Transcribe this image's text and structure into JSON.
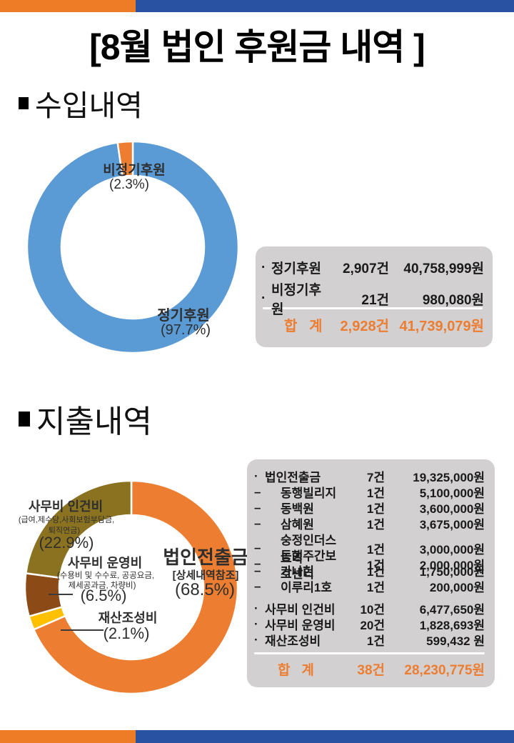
{
  "page": {
    "title": "[8월 법인 후원금 내역 ]"
  },
  "sections": {
    "income": {
      "heading": "수입내역"
    },
    "expense": {
      "heading": "지출내역"
    }
  },
  "colors": {
    "bar_orange": "#EE7B26",
    "bar_blue": "#2952A3",
    "donut_blue": "#5B9BD5",
    "donut_orange": "#ED7D31",
    "donut_gold": "#FFC000",
    "donut_brown": "#8C4A16",
    "donut_olive": "#8A7220",
    "table_bg": "#d2d0d0",
    "total_text": "#ED7D31"
  },
  "chart_data": [
    {
      "type": "pie",
      "subtype": "donut",
      "title": "수입내역",
      "labels": [
        "정기후원",
        "비정기후원"
      ],
      "values": [
        97.7,
        2.3
      ],
      "slices": [
        {
          "name": "정기후원",
          "value": 97.7,
          "color": "#5B9BD5"
        },
        {
          "name": "비정기후원",
          "value": 2.3,
          "color": "#ED7D31"
        }
      ],
      "callouts": {
        "minor": {
          "title": "비정기후원",
          "pct": "(2.3%)"
        },
        "major": {
          "title": "정기후원",
          "pct": "(97.7%)"
        }
      }
    },
    {
      "type": "pie",
      "subtype": "donut",
      "title": "지출내역",
      "labels": [
        "법인전출금",
        "재산조성비",
        "사무비 운영비",
        "사무비 인건비"
      ],
      "values": [
        68.5,
        2.1,
        6.5,
        22.9
      ],
      "slices": [
        {
          "name": "법인전출금",
          "value": 68.5,
          "color": "#ED7D31"
        },
        {
          "name": "재산조성비",
          "value": 2.1,
          "color": "#FFC000"
        },
        {
          "name": "사무비-운영비",
          "value": 6.5,
          "color": "#8C4A16"
        },
        {
          "name": "사무비-인건비",
          "value": 22.9,
          "color": "#8A7220"
        }
      ],
      "callouts": {
        "personnel": {
          "title": "사무비 인건비",
          "desc1": "(급여,제수당,사회보험부담금,",
          "desc2": "퇴직연금)",
          "pct": "(22.9%)"
        },
        "operating": {
          "title": "사무비 운영비",
          "desc1": "(수용비 및 수수료, 공공요금,",
          "desc2": "제세공과금, 차량비)",
          "pct": "(6.5%)"
        },
        "property": {
          "title": "재산조성비",
          "pct": "(2.1%)"
        },
        "transfer": {
          "title": "법인전출금",
          "sub": "[상세내역참조]",
          "pct": "(68.5%)"
        }
      }
    },
    {
      "type": "table",
      "title": "수입내역 집계",
      "rows": [
        {
          "bullet": "·",
          "name": "정기후원",
          "count": "2,907건",
          "amount": "40,758,999원"
        },
        {
          "bullet": "·",
          "name": "비정기후원",
          "count": "21건",
          "amount": "980,080원"
        }
      ],
      "total": {
        "label": "합   계",
        "count": "2,928건",
        "amount": "41,739,079원"
      }
    },
    {
      "type": "table",
      "title": "지출내역 집계",
      "rows": [
        {
          "bullet": "·",
          "name": "법인전출금",
          "count": "7건",
          "amount": "19,325,000원"
        },
        {
          "bullet": "–",
          "name": "동행빌리지",
          "count": "1건",
          "amount": "5,100,000원",
          "indent": true
        },
        {
          "bullet": "–",
          "name": "동백원",
          "count": "1건",
          "amount": "3,600,000원",
          "indent": true
        },
        {
          "bullet": "–",
          "name": "삼혜원",
          "count": "1건",
          "amount": "3,675,000원",
          "indent": true
        },
        {
          "bullet": "–",
          "name": "숭정인더스트리",
          "count": "1건",
          "amount": "3,000,000원",
          "indent": true
        },
        {
          "bullet": "–",
          "name": "동행주간보호센터",
          "count": "1건",
          "amount": "2,000,000원",
          "indent": true
        },
        {
          "bullet": "–",
          "name": "가나헌",
          "count": "1건",
          "amount": "1,750,000원",
          "indent": true
        },
        {
          "bullet": "–",
          "name": "이루리1호",
          "count": "1건",
          "amount": "200,000원",
          "indent": true
        },
        {
          "bullet": "·",
          "name": "사무비 인건비",
          "count": "10건",
          "amount": "6,477,650원",
          "group_break": true
        },
        {
          "bullet": "·",
          "name": "사무비 운영비",
          "count": "20건",
          "amount": "1,828,693원"
        },
        {
          "bullet": "·",
          "name": "재산조성비",
          "count": "1건",
          "amount": "599,432 원"
        }
      ],
      "total": {
        "label": "합   계",
        "count": "38건",
        "amount": "28,230,775원"
      }
    }
  ]
}
